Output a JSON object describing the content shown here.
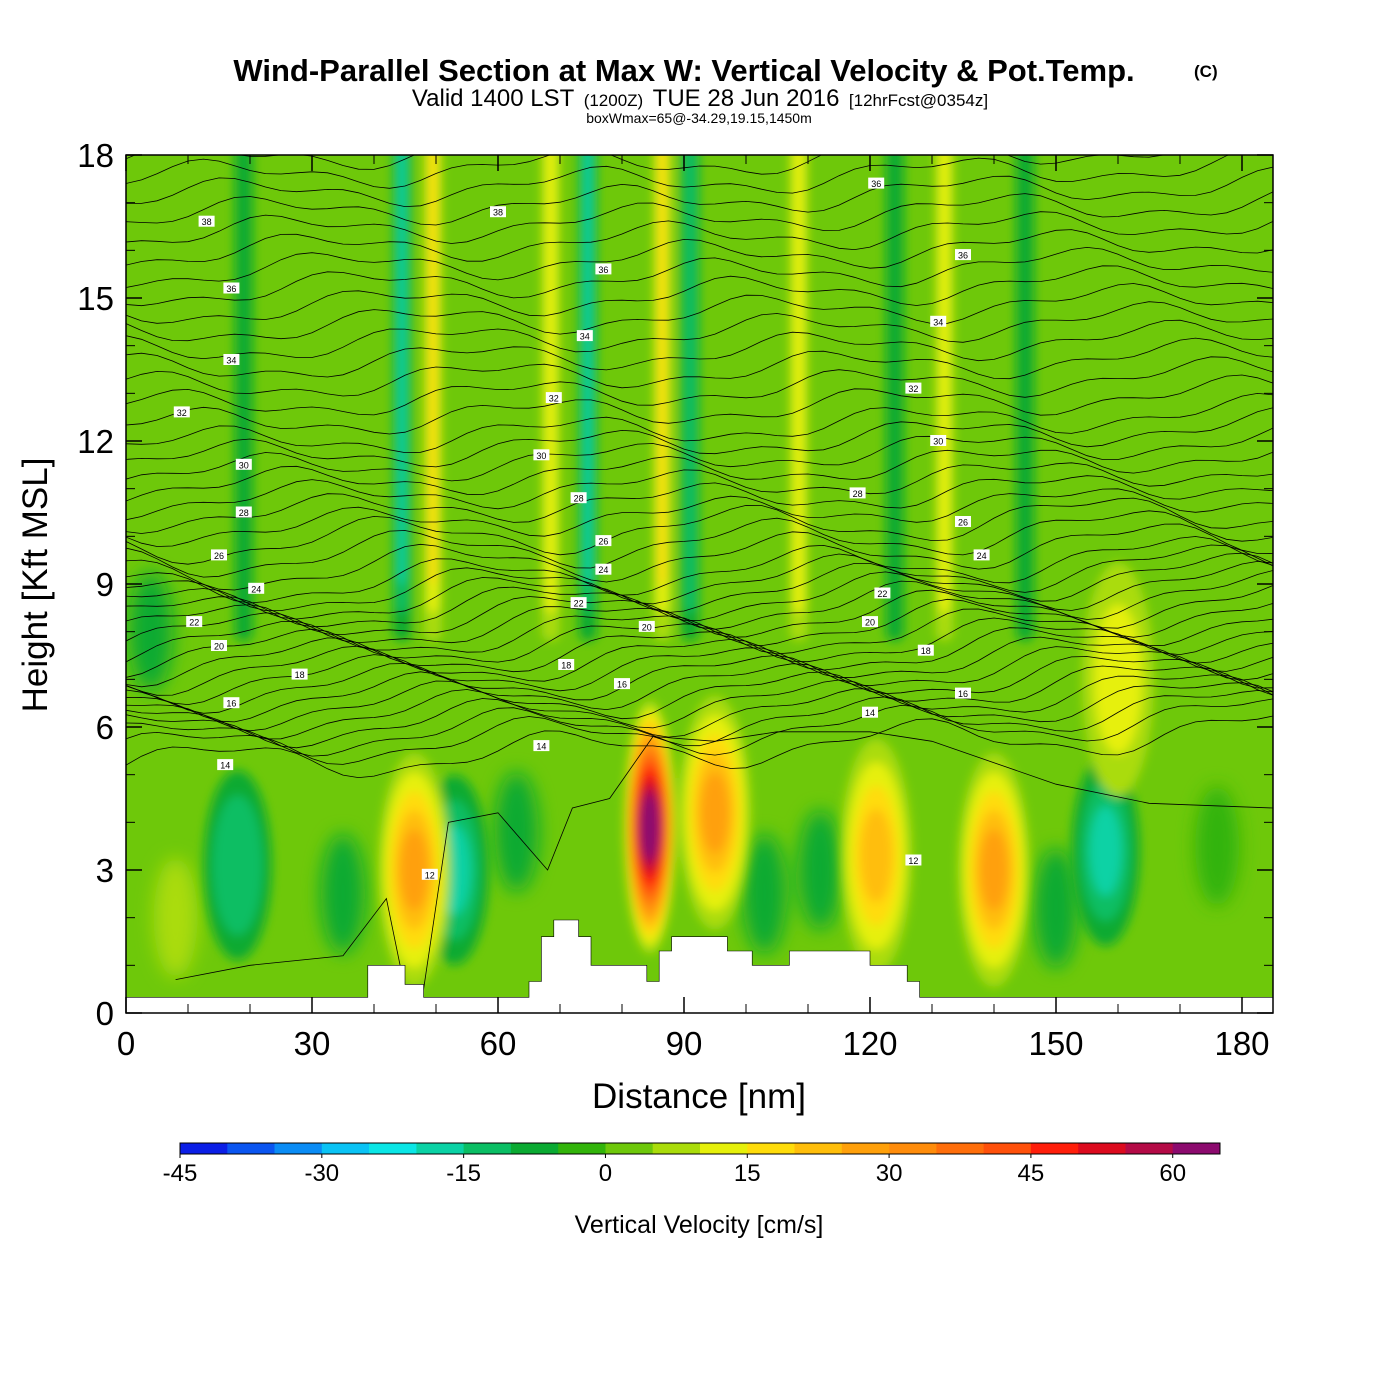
{
  "title": {
    "main": "Wind-Parallel Section at Max W: Vertical Velocity & Pot.Temp.",
    "copyright": "(C)",
    "valid_a": "Valid 1400 LST",
    "valid_b": "(1200Z)",
    "valid_c": "TUE 28 Jun 2016",
    "valid_d": "[12hrFcst@0354z]",
    "info": "boxWmax=65@-34.29,19.15,1450m"
  },
  "chart_data": {
    "type": "heatmap",
    "xlabel": "Distance [nm]",
    "ylabel": "Height [Kft MSL]",
    "xlim": [
      0,
      185
    ],
    "ylim": [
      0,
      18
    ],
    "x_ticks": [
      0,
      30,
      60,
      90,
      120,
      150,
      180
    ],
    "y_ticks": [
      0,
      3,
      6,
      9,
      12,
      15,
      18
    ],
    "colorbar": {
      "label": "Vertical Velocity [cm/s]",
      "range": [
        -45,
        65
      ],
      "ticks": [
        -45,
        -30,
        -15,
        0,
        15,
        30,
        45,
        60
      ],
      "levels": [
        -45,
        -40,
        -35,
        -30,
        -25,
        -20,
        -15,
        -10,
        -5,
        0,
        5,
        10,
        15,
        20,
        25,
        30,
        35,
        40,
        45,
        50,
        55,
        60,
        65
      ],
      "colors": [
        "#0b1ee6",
        "#0a55f0",
        "#0a8cf5",
        "#0ac3f5",
        "#0ae6e6",
        "#0ad2a5",
        "#0abe64",
        "#0aaa32",
        "#32b40a",
        "#6ec80a",
        "#aadc0a",
        "#e6f00a",
        "#ffdc0a",
        "#ffbe0a",
        "#ffa00a",
        "#ff8c0a",
        "#ff6e0a",
        "#ff500a",
        "#ff1e0a",
        "#dc0a1e",
        "#b40a46",
        "#8c0a6e"
      ]
    },
    "updrafts": [
      {
        "x": 84.5,
        "z": 3.9,
        "peak": 65
      },
      {
        "x": 46.5,
        "z": 3.0,
        "peak": 25
      },
      {
        "x": 95,
        "z": 4.2,
        "peak": 25
      },
      {
        "x": 121,
        "z": 3.3,
        "peak": 22
      },
      {
        "x": 140,
        "z": 3.0,
        "peak": 28
      },
      {
        "x": 160,
        "z": 7.0,
        "peak": 14
      }
    ],
    "upper_bands": [
      {
        "x": 49.5,
        "sign": "up",
        "peak": 15
      },
      {
        "x": 68.5,
        "sign": "up",
        "peak": 14
      },
      {
        "x": 86.5,
        "sign": "up",
        "peak": 15
      },
      {
        "x": 108.5,
        "sign": "up",
        "peak": 13
      },
      {
        "x": 132,
        "sign": "up",
        "peak": 10
      },
      {
        "x": 44.5,
        "sign": "down",
        "peak": -18
      },
      {
        "x": 74.5,
        "sign": "down",
        "peak": -17
      },
      {
        "x": 91,
        "sign": "down",
        "peak": -10
      },
      {
        "x": 19,
        "sign": "down",
        "peak": -8
      },
      {
        "x": 124,
        "sign": "down",
        "peak": -7
      },
      {
        "x": 145,
        "sign": "down",
        "peak": -7
      }
    ],
    "lower_downdrafts": [
      {
        "x": 53,
        "z": 3.0,
        "peak": -15
      },
      {
        "x": 18,
        "z": 3.1,
        "peak": -12
      },
      {
        "x": 158,
        "z": 3.4,
        "peak": -16
      }
    ],
    "theta_contour_labels": [
      {
        "x": 13,
        "z": 16.6,
        "text": "38"
      },
      {
        "x": 60,
        "z": 16.8,
        "text": "38"
      },
      {
        "x": 121,
        "z": 17.4,
        "text": "36"
      },
      {
        "x": 17,
        "z": 15.2,
        "text": "36"
      },
      {
        "x": 77,
        "z": 15.6,
        "text": "36"
      },
      {
        "x": 135,
        "z": 15.9,
        "text": "36"
      },
      {
        "x": 17,
        "z": 13.7,
        "text": "34"
      },
      {
        "x": 74,
        "z": 14.2,
        "text": "34"
      },
      {
        "x": 131,
        "z": 14.5,
        "text": "34"
      },
      {
        "x": 9,
        "z": 12.6,
        "text": "32"
      },
      {
        "x": 69,
        "z": 12.9,
        "text": "32"
      },
      {
        "x": 127,
        "z": 13.1,
        "text": "32"
      },
      {
        "x": 19,
        "z": 11.5,
        "text": "30"
      },
      {
        "x": 67,
        "z": 11.7,
        "text": "30"
      },
      {
        "x": 131,
        "z": 12.0,
        "text": "30"
      },
      {
        "x": 19,
        "z": 10.5,
        "text": "28"
      },
      {
        "x": 73,
        "z": 10.8,
        "text": "28"
      },
      {
        "x": 118,
        "z": 10.9,
        "text": "28"
      },
      {
        "x": 15,
        "z": 9.6,
        "text": "26"
      },
      {
        "x": 77,
        "z": 9.9,
        "text": "26"
      },
      {
        "x": 135,
        "z": 10.3,
        "text": "26"
      },
      {
        "x": 21,
        "z": 8.9,
        "text": "24"
      },
      {
        "x": 77,
        "z": 9.3,
        "text": "24"
      },
      {
        "x": 138,
        "z": 9.6,
        "text": "24"
      },
      {
        "x": 11,
        "z": 8.2,
        "text": "22"
      },
      {
        "x": 73,
        "z": 8.6,
        "text": "22"
      },
      {
        "x": 122,
        "z": 8.8,
        "text": "22"
      },
      {
        "x": 15,
        "z": 7.7,
        "text": "20"
      },
      {
        "x": 84,
        "z": 8.1,
        "text": "20"
      },
      {
        "x": 120,
        "z": 8.2,
        "text": "20"
      },
      {
        "x": 28,
        "z": 7.1,
        "text": "18"
      },
      {
        "x": 71,
        "z": 7.3,
        "text": "18"
      },
      {
        "x": 129,
        "z": 7.6,
        "text": "18"
      },
      {
        "x": 17,
        "z": 6.5,
        "text": "16"
      },
      {
        "x": 80,
        "z": 6.9,
        "text": "16"
      },
      {
        "x": 135,
        "z": 6.7,
        "text": "16"
      },
      {
        "x": 16,
        "z": 5.2,
        "text": "14"
      },
      {
        "x": 67,
        "z": 5.6,
        "text": "14"
      },
      {
        "x": 120,
        "z": 6.3,
        "text": "14"
      },
      {
        "x": 49,
        "z": 2.9,
        "text": "12"
      },
      {
        "x": 127,
        "z": 3.2,
        "text": "12"
      }
    ],
    "terrain_profile": [
      [
        0,
        0.33
      ],
      [
        39,
        0.33
      ],
      [
        39,
        1.0
      ],
      [
        45,
        1.0
      ],
      [
        45,
        0.6
      ],
      [
        48,
        0.6
      ],
      [
        48,
        0.33
      ],
      [
        65,
        0.33
      ],
      [
        65,
        0.66
      ],
      [
        67,
        0.66
      ],
      [
        67,
        1.6
      ],
      [
        69,
        1.6
      ],
      [
        69,
        1.95
      ],
      [
        73,
        1.95
      ],
      [
        73,
        1.6
      ],
      [
        75,
        1.6
      ],
      [
        75,
        1.0
      ],
      [
        84,
        1.0
      ],
      [
        84,
        0.66
      ],
      [
        86,
        0.66
      ],
      [
        86,
        1.3
      ],
      [
        88,
        1.3
      ],
      [
        88,
        1.6
      ],
      [
        97,
        1.6
      ],
      [
        97,
        1.3
      ],
      [
        101,
        1.3
      ],
      [
        101,
        1.0
      ],
      [
        107,
        1.0
      ],
      [
        107,
        1.3
      ],
      [
        120,
        1.3
      ],
      [
        120,
        1.0
      ],
      [
        126,
        1.0
      ],
      [
        126,
        0.66
      ],
      [
        128,
        0.66
      ],
      [
        128,
        0.33
      ],
      [
        185,
        0.33
      ]
    ]
  }
}
